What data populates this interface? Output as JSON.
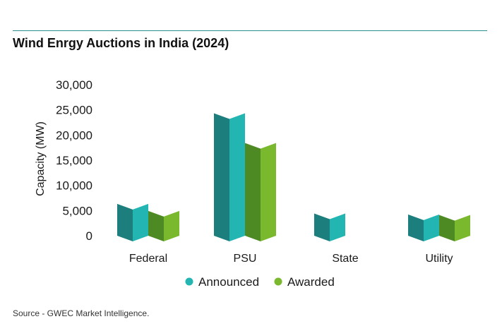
{
  "chart_data": {
    "type": "bar",
    "title": "Wind Enrgy Auctions in India (2024)",
    "ylabel": "Capacity (MW)",
    "xlabel": "",
    "ylim": [
      0,
      30000
    ],
    "yticks": [
      "0",
      "5,000",
      "10,000",
      "15,000",
      "20,000",
      "25,000",
      "30,000"
    ],
    "ytick_values": [
      0,
      5000,
      10000,
      15000,
      20000,
      25000,
      30000
    ],
    "categories": [
      "Federal",
      "PSU",
      "State",
      "Utility"
    ],
    "series": [
      {
        "name": "Announced",
        "values": [
          5200,
          23200,
          3300,
          3100
        ],
        "color": "#22b5b2",
        "dark_color": "#1c7f7d"
      },
      {
        "name": "Awarded",
        "values": [
          3800,
          17300,
          0,
          3000
        ],
        "color": "#7ab82e",
        "dark_color": "#4e8a23"
      }
    ],
    "legend_position": "bottom"
  },
  "source": "Source - GWEC Market Intelligence."
}
